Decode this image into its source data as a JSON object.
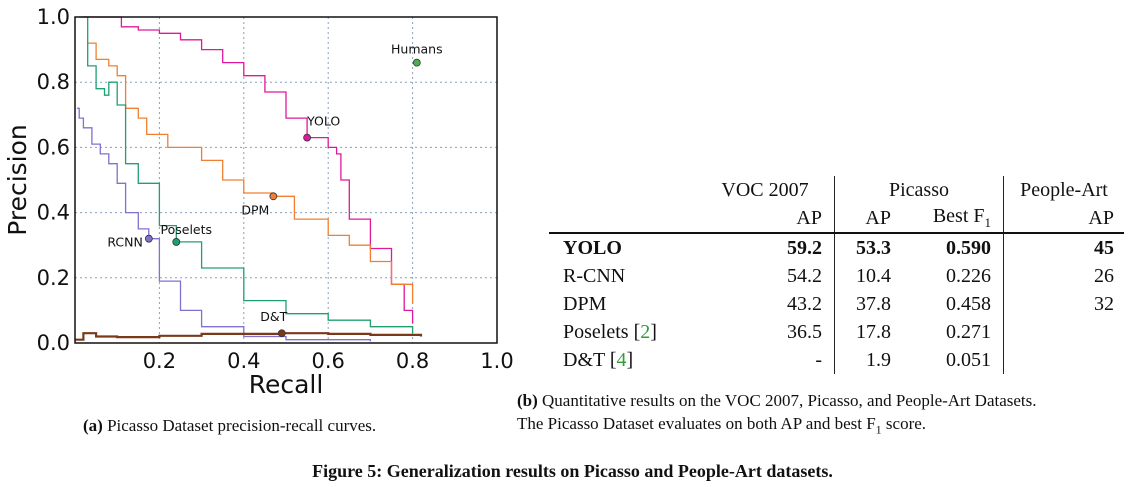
{
  "chart_data": {
    "type": "line",
    "xlabel": "Recall",
    "ylabel": "Precision",
    "xlim": [
      0.0,
      1.0
    ],
    "ylim": [
      0.0,
      1.0
    ],
    "xticks": [
      "0.2",
      "0.4",
      "0.6",
      "0.8",
      "1.0"
    ],
    "yticks": [
      "0.0",
      "0.2",
      "0.4",
      "0.6",
      "0.8",
      "1.0"
    ],
    "grid": true,
    "series": [
      {
        "name": "YOLO",
        "color": "#e0189c",
        "marker": {
          "x": 0.55,
          "y": 0.63
        },
        "points": [
          [
            0.02,
            1.0
          ],
          [
            0.09,
            1.0
          ],
          [
            0.11,
            0.97
          ],
          [
            0.15,
            0.96
          ],
          [
            0.2,
            0.95
          ],
          [
            0.25,
            0.93
          ],
          [
            0.3,
            0.9
          ],
          [
            0.35,
            0.86
          ],
          [
            0.4,
            0.82
          ],
          [
            0.45,
            0.77
          ],
          [
            0.5,
            0.69
          ],
          [
            0.55,
            0.63
          ],
          [
            0.6,
            0.6
          ],
          [
            0.62,
            0.58
          ],
          [
            0.63,
            0.5
          ],
          [
            0.65,
            0.38
          ],
          [
            0.7,
            0.29
          ],
          [
            0.75,
            0.18
          ],
          [
            0.78,
            0.1
          ],
          [
            0.8,
            0.06
          ]
        ]
      },
      {
        "name": "DPM",
        "color": "#f08030",
        "marker": {
          "x": 0.47,
          "y": 0.45
        },
        "points": [
          [
            0.03,
            0.92
          ],
          [
            0.05,
            0.87
          ],
          [
            0.08,
            0.85
          ],
          [
            0.1,
            0.82
          ],
          [
            0.12,
            0.72
          ],
          [
            0.15,
            0.69
          ],
          [
            0.17,
            0.64
          ],
          [
            0.22,
            0.6
          ],
          [
            0.3,
            0.56
          ],
          [
            0.35,
            0.5
          ],
          [
            0.4,
            0.46
          ],
          [
            0.47,
            0.45
          ],
          [
            0.52,
            0.38
          ],
          [
            0.6,
            0.33
          ],
          [
            0.65,
            0.3
          ],
          [
            0.7,
            0.25
          ],
          [
            0.75,
            0.18
          ],
          [
            0.8,
            0.12
          ]
        ]
      },
      {
        "name": "Poselets",
        "color": "#20a070",
        "marker": {
          "x": 0.24,
          "y": 0.31
        },
        "points": [
          [
            0.01,
            1.0
          ],
          [
            0.03,
            0.85
          ],
          [
            0.05,
            0.78
          ],
          [
            0.07,
            0.76
          ],
          [
            0.08,
            0.8
          ],
          [
            0.1,
            0.73
          ],
          [
            0.12,
            0.55
          ],
          [
            0.15,
            0.49
          ],
          [
            0.2,
            0.36
          ],
          [
            0.24,
            0.31
          ],
          [
            0.3,
            0.23
          ],
          [
            0.4,
            0.13
          ],
          [
            0.5,
            0.09
          ],
          [
            0.6,
            0.07
          ],
          [
            0.7,
            0.05
          ],
          [
            0.8,
            0.03
          ]
        ]
      },
      {
        "name": "RCNN",
        "color": "#8070d0",
        "marker": {
          "x": 0.175,
          "y": 0.32
        },
        "points": [
          [
            0.005,
            0.72
          ],
          [
            0.01,
            0.69
          ],
          [
            0.02,
            0.66
          ],
          [
            0.04,
            0.61
          ],
          [
            0.06,
            0.58
          ],
          [
            0.08,
            0.55
          ],
          [
            0.1,
            0.49
          ],
          [
            0.12,
            0.4
          ],
          [
            0.15,
            0.35
          ],
          [
            0.175,
            0.32
          ],
          [
            0.2,
            0.19
          ],
          [
            0.25,
            0.1
          ],
          [
            0.3,
            0.05
          ],
          [
            0.4,
            0.02
          ],
          [
            0.5,
            0.01
          ],
          [
            0.7,
            0.005
          ]
        ]
      },
      {
        "name": "D&T",
        "color": "#7a3a1a",
        "marker": {
          "x": 0.49,
          "y": 0.03
        },
        "points": [
          [
            0.0,
            0.01
          ],
          [
            0.02,
            0.03
          ],
          [
            0.05,
            0.02
          ],
          [
            0.1,
            0.018
          ],
          [
            0.2,
            0.022
          ],
          [
            0.3,
            0.028
          ],
          [
            0.4,
            0.028
          ],
          [
            0.49,
            0.03
          ],
          [
            0.6,
            0.028
          ],
          [
            0.7,
            0.025
          ],
          [
            0.82,
            0.02
          ]
        ]
      }
    ],
    "annotations": [
      {
        "label": "Humans",
        "x": 0.81,
        "y": 0.86,
        "color": "#4caf50"
      }
    ]
  },
  "captions": {
    "a_tag": "(a)",
    "a_text": "Picasso Dataset precision-recall curves.",
    "b_tag": "(b)",
    "b_line1": "Quantitative results on the VOC 2007, Picasso, and People-Art Datasets.",
    "b_line2": "The Picasso Dataset evaluates on both AP and best F",
    "b_line2_sub": "1",
    "b_line2_end": " score.",
    "figure": "Figure 5: Generalization results on Picasso and People-Art datasets."
  },
  "table": {
    "header_top": {
      "voc": "VOC 2007",
      "picasso": "Picasso",
      "people_art": "People-Art"
    },
    "header_bottom": {
      "voc": "AP",
      "picasso_ap": "AP",
      "picasso_f1": "Best F",
      "picasso_f1_sub": "1",
      "people_art": "AP"
    },
    "rows": [
      {
        "method": "YOLO",
        "ref": "",
        "voc": "59.2",
        "pic_ap": "53.3",
        "pic_f1": "0.590",
        "pa": "45",
        "bold": true
      },
      {
        "method": "R-CNN",
        "ref": "",
        "voc": "54.2",
        "pic_ap": "10.4",
        "pic_f1": "0.226",
        "pa": "26",
        "bold": false
      },
      {
        "method": "DPM",
        "ref": "",
        "voc": "43.2",
        "pic_ap": "37.8",
        "pic_f1": "0.458",
        "pa": "32",
        "bold": false
      },
      {
        "method": "Poselets ",
        "ref": "2",
        "voc": "36.5",
        "pic_ap": "17.8",
        "pic_f1": "0.271",
        "pa": "",
        "bold": false
      },
      {
        "method": "D&T ",
        "ref": "4",
        "voc": "-",
        "pic_ap": "1.9",
        "pic_f1": "0.051",
        "pa": "",
        "bold": false
      }
    ]
  }
}
